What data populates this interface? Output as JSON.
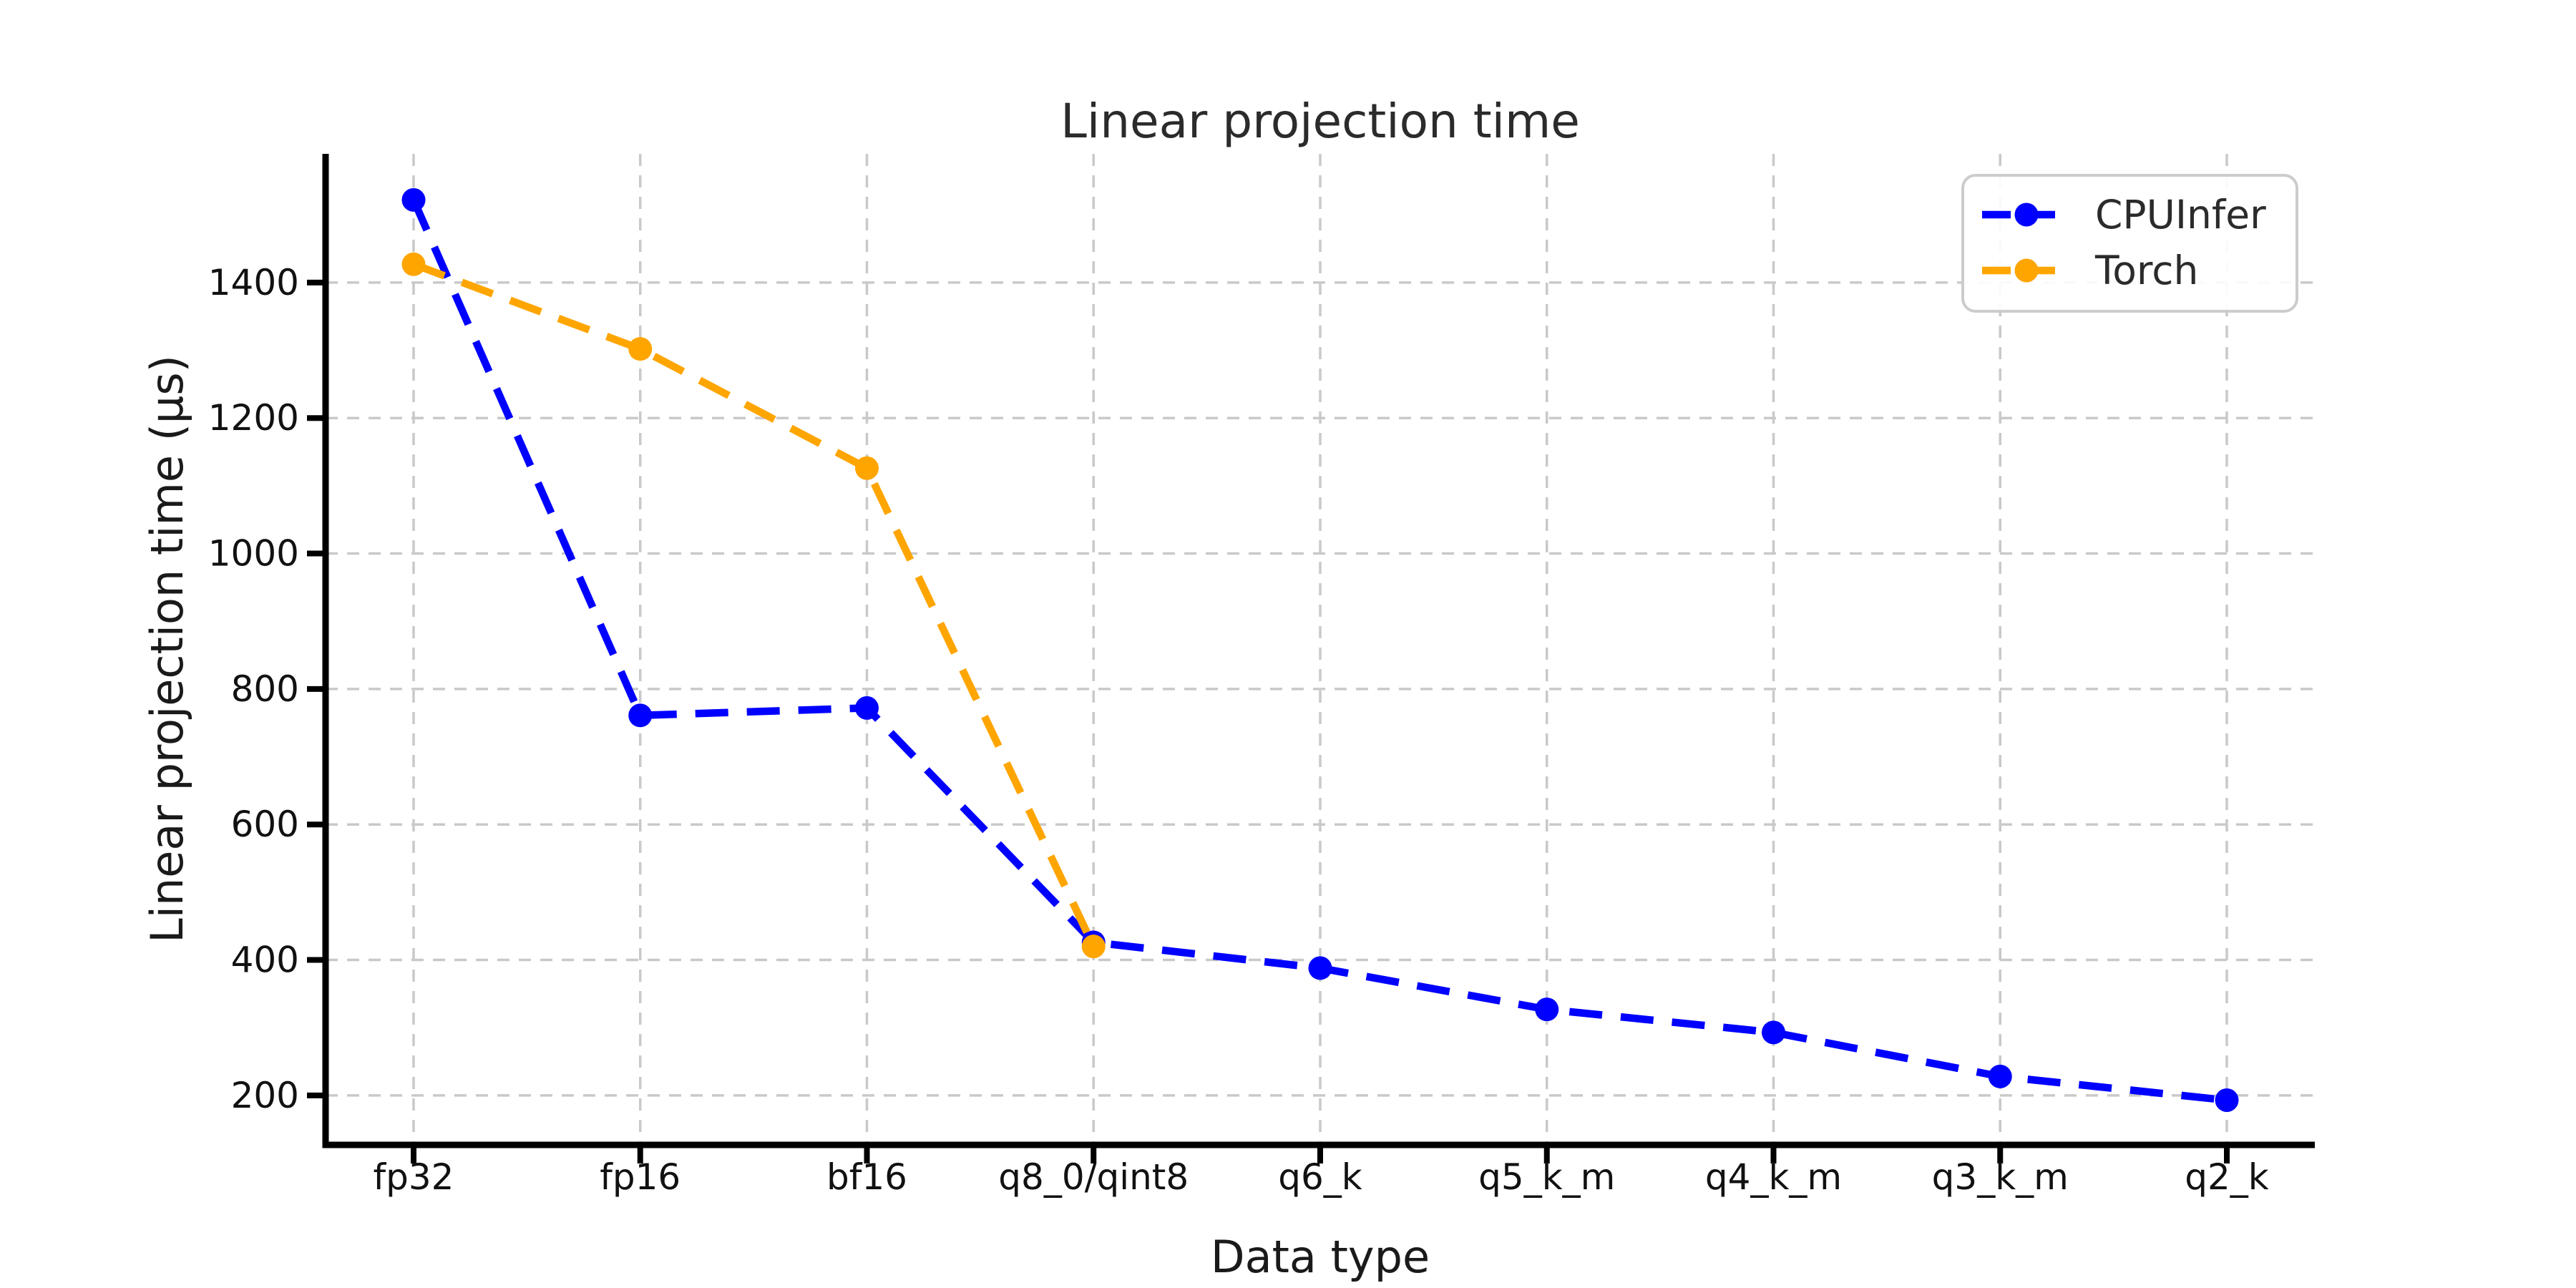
{
  "chart_data": {
    "type": "line",
    "title": "Linear projection time",
    "xlabel": "Data type",
    "ylabel": "Linear projection time (µs)",
    "categories": [
      "fp32",
      "fp16",
      "bf16",
      "q8_0/qint8",
      "q6_k",
      "q5_k_m",
      "q4_k_m",
      "q3_k_m",
      "q2_k"
    ],
    "series": [
      {
        "name": "CPUInfer",
        "color": "#0000ff",
        "values": [
          1522,
          761,
          772,
          426,
          388,
          327,
          293,
          228,
          193
        ]
      },
      {
        "name": "Torch",
        "color": "#ffa500",
        "values": [
          1427,
          1302,
          1126,
          420
        ]
      }
    ],
    "yticks": [
      200,
      400,
      600,
      800,
      1000,
      1200,
      1400
    ],
    "ylim": [
      127,
      1590
    ],
    "grid": true,
    "grid_color": "#c9c9c9",
    "line_style": "dashed",
    "marker": "circle",
    "legend_position": "upper right",
    "background": "#ffffff",
    "spine_color": "#000000"
  }
}
